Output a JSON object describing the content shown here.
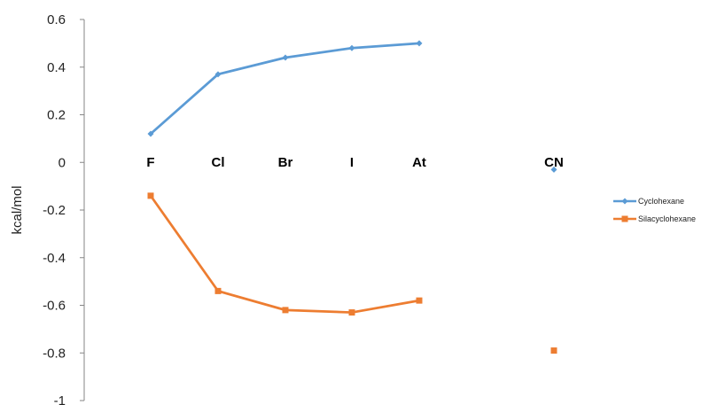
{
  "chart_data": {
    "type": "line",
    "categories": [
      "F",
      "Cl",
      "Br",
      "I",
      "At",
      "CN"
    ],
    "series": [
      {
        "name": "Cyclohexane",
        "color": "#5b9bd5",
        "marker": "diamond",
        "values": [
          0.12,
          0.37,
          0.44,
          0.48,
          0.5,
          -0.03
        ],
        "connected_to": 4
      },
      {
        "name": "Silacyclohexane",
        "color": "#ed7d31",
        "marker": "square",
        "values": [
          -0.14,
          -0.54,
          -0.62,
          -0.63,
          -0.58,
          -0.79
        ],
        "connected_to": 4
      }
    ],
    "ylabel": "kcal/mol",
    "ylim": [
      -1,
      0.6
    ],
    "yticks": [
      "0.6",
      "0.4",
      "0.2",
      "0",
      "-0.2",
      "-0.4",
      "-0.6",
      "-0.8",
      "-1"
    ],
    "ytick_values": [
      0.6,
      0.4,
      0.2,
      0,
      -0.2,
      -0.4,
      -0.6,
      -0.8,
      -1
    ],
    "grid": false,
    "legend_position": "right"
  }
}
